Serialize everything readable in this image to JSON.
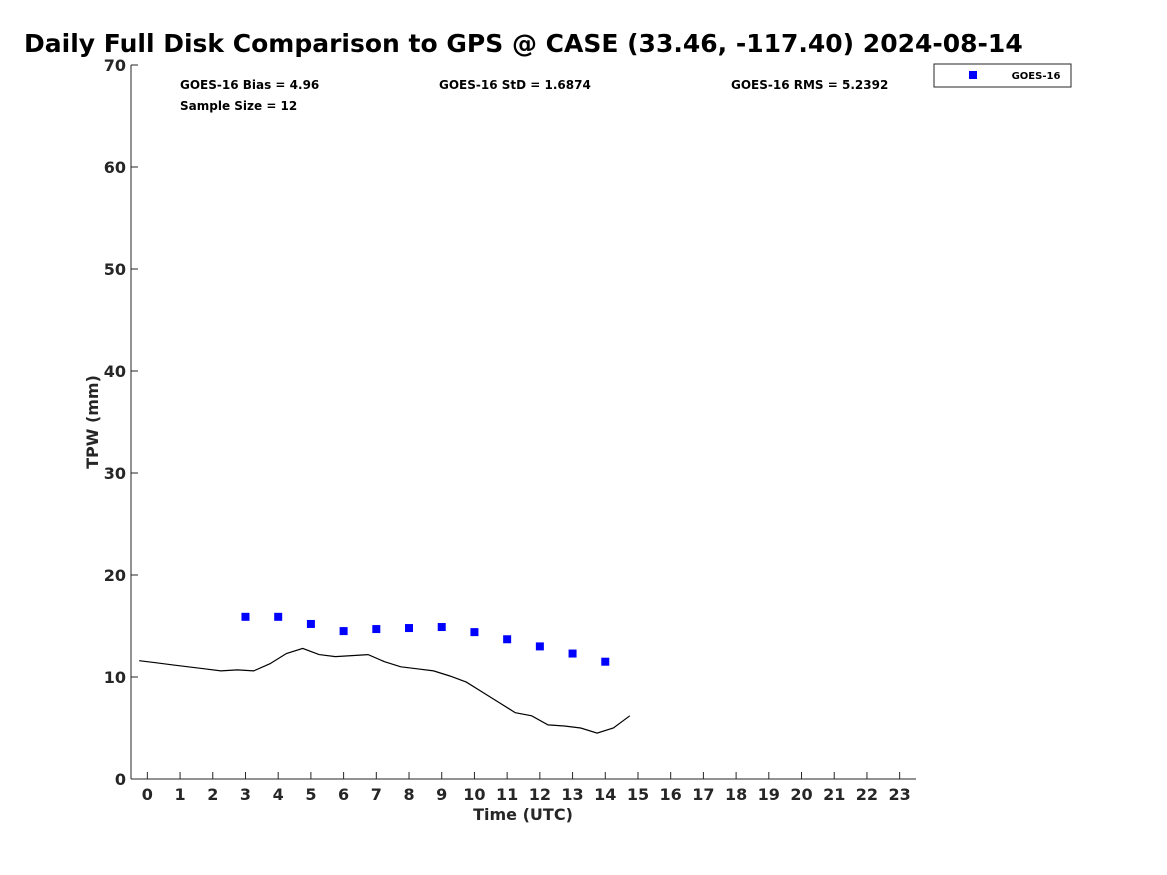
{
  "chart_data": {
    "type": "scatter",
    "title": "Daily Full Disk Comparison to GPS @ CASE (33.46, -117.40) 2024-08-14",
    "xlabel": "Time (UTC)",
    "ylabel": "TPW (mm)",
    "xlim": [
      -0.5,
      23.5
    ],
    "ylim": [
      0,
      70
    ],
    "x_ticks": [
      0,
      1,
      2,
      3,
      4,
      5,
      6,
      7,
      8,
      9,
      10,
      11,
      12,
      13,
      14,
      15,
      16,
      17,
      18,
      19,
      20,
      21,
      22,
      23
    ],
    "y_ticks": [
      0,
      10,
      20,
      30,
      40,
      50,
      60,
      70
    ],
    "stats": [
      "GOES-16 Bias = 4.96",
      "GOES-16 StD = 1.6874",
      "GOES-16 RMS = 5.2392",
      "Sample Size = 12"
    ],
    "legend": {
      "placement": "top-right",
      "entries": [
        "GOES-16"
      ]
    },
    "series": [
      {
        "name": "GOES-16",
        "style": "markers",
        "color": "#0000ff",
        "x": [
          3,
          4,
          5,
          6,
          7,
          8,
          9,
          10,
          11,
          12,
          13,
          14
        ],
        "y": [
          15.9,
          15.9,
          15.2,
          14.5,
          14.7,
          14.8,
          14.9,
          14.4,
          13.7,
          13.0,
          12.3,
          11.5
        ]
      },
      {
        "style": "line",
        "color": "#000000",
        "x": [
          -0.25,
          0.25,
          0.75,
          1.25,
          1.75,
          2.25,
          2.75,
          3.25,
          3.75,
          4.25,
          4.75,
          5.25,
          5.75,
          6.25,
          6.75,
          7.25,
          7.75,
          8.25,
          8.75,
          9.25,
          9.75,
          10.25,
          10.75,
          11.25,
          11.75,
          12.25,
          12.75,
          13.25,
          13.75,
          14.25,
          14.75
        ],
        "y": [
          11.6,
          11.4,
          11.2,
          11.0,
          10.8,
          10.6,
          10.7,
          10.6,
          11.3,
          12.3,
          12.8,
          12.2,
          12.0,
          12.1,
          12.2,
          11.5,
          11.0,
          10.8,
          10.6,
          10.1,
          9.5,
          8.5,
          7.5,
          6.5,
          6.2,
          5.3,
          5.2,
          5.0,
          4.5,
          5.0,
          6.2
        ]
      }
    ]
  }
}
